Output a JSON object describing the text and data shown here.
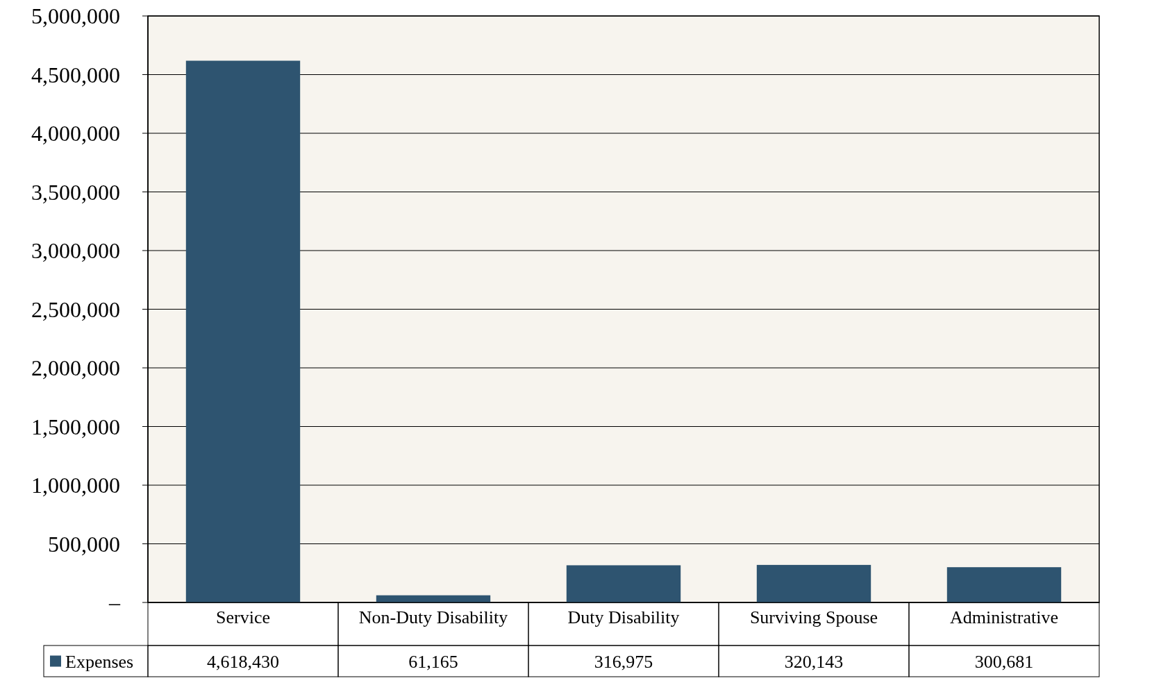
{
  "chart_data": {
    "type": "bar",
    "categories": [
      "Service",
      "Non-Duty Disability",
      "Duty Disability",
      "Surviving Spouse",
      "Administrative"
    ],
    "series": [
      {
        "name": "Expenses",
        "color": "#2e5470",
        "values": [
          4618430,
          61165,
          316975,
          320143,
          300681
        ],
        "value_labels": [
          "4,618,430",
          "61,165",
          "316,975",
          "320,143",
          "300,681"
        ]
      }
    ],
    "ylim": [
      0,
      5000000
    ],
    "yticks": [
      {
        "value": 0,
        "label": "–"
      },
      {
        "value": 500000,
        "label": "500,000"
      },
      {
        "value": 1000000,
        "label": "1,000,000"
      },
      {
        "value": 1500000,
        "label": "1,500,000"
      },
      {
        "value": 2000000,
        "label": "2,000,000"
      },
      {
        "value": 2500000,
        "label": "2,500,000"
      },
      {
        "value": 3000000,
        "label": "3,000,000"
      },
      {
        "value": 3500000,
        "label": "3,500,000"
      },
      {
        "value": 4000000,
        "label": "4,000,000"
      },
      {
        "value": 4500000,
        "label": "4,500,000"
      },
      {
        "value": 5000000,
        "label": "5,000,000"
      }
    ],
    "grid": "y",
    "legend": "bottom left"
  }
}
